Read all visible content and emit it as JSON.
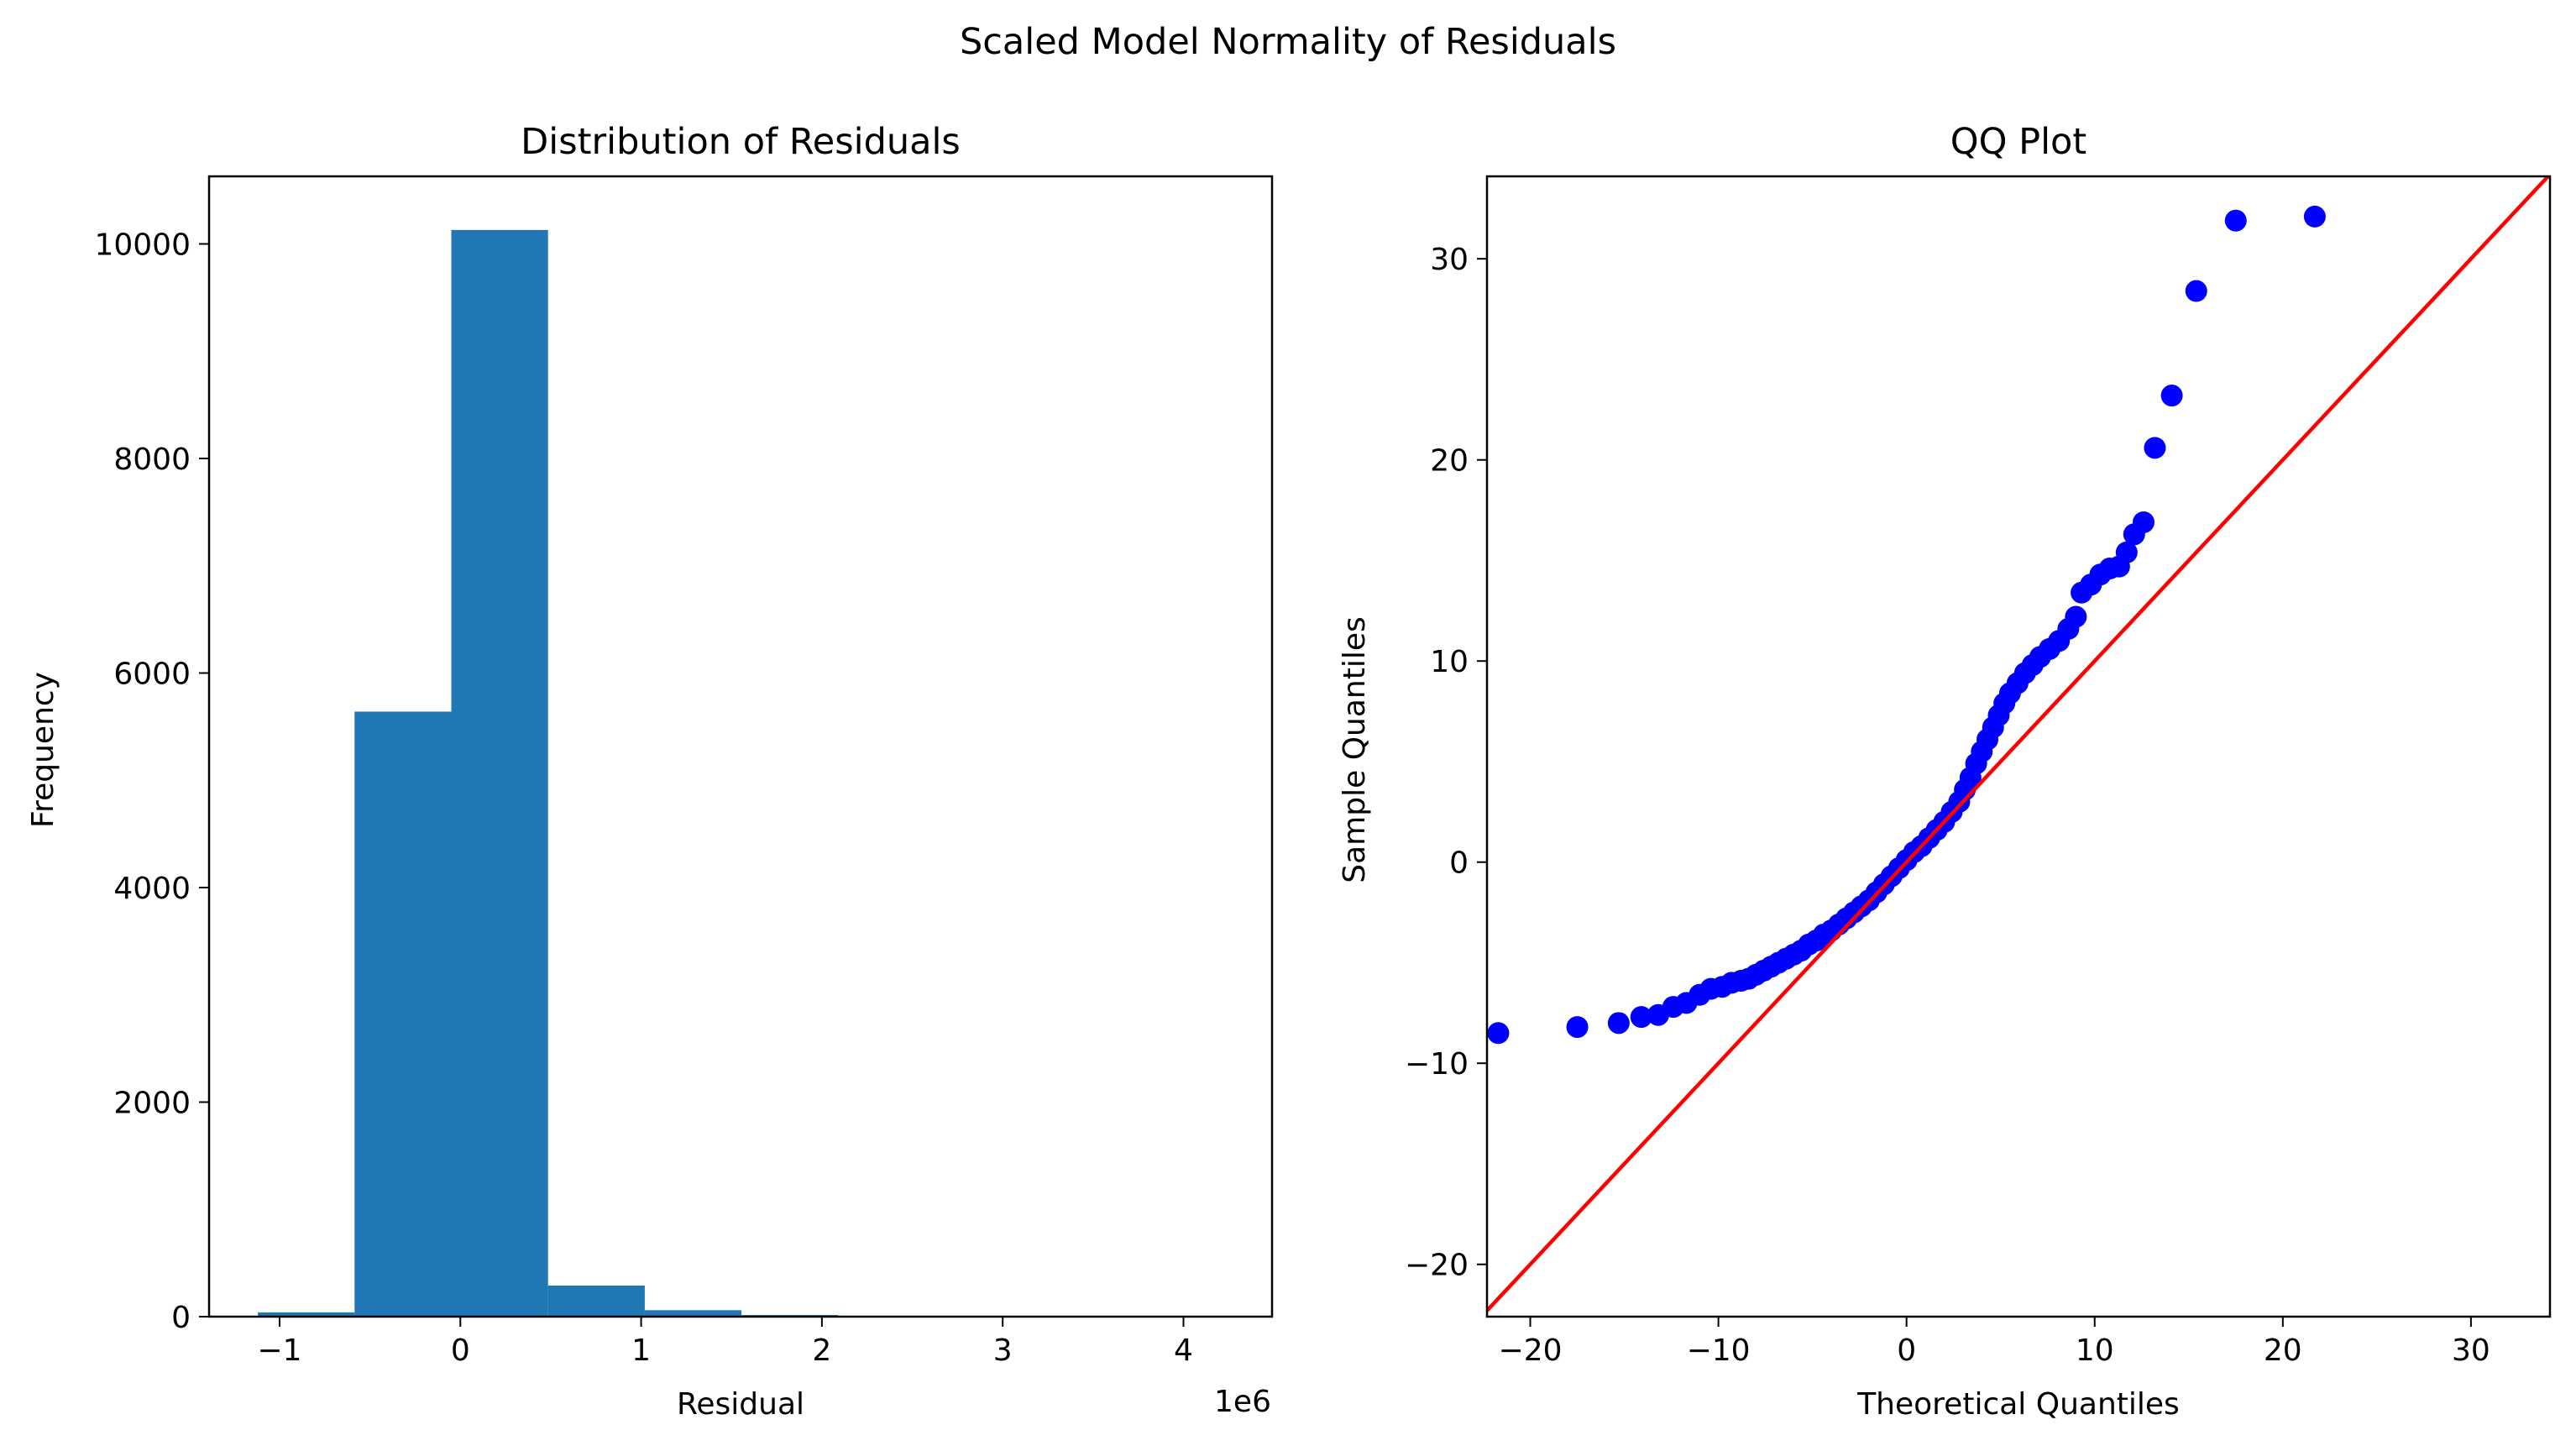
{
  "figure": {
    "suptitle": "Scaled Model Normality of Residuals"
  },
  "colors": {
    "hist_bar": "#1f77b4",
    "qq_points": "#0000ff",
    "qq_line": "#ff0000",
    "axes": "#000000",
    "background": "#ffffff"
  },
  "chart_data": [
    {
      "type": "bar",
      "subtype": "histogram",
      "title": "Distribution of Residuals",
      "xlabel": "Residual",
      "ylabel": "Frequency",
      "x_offset_label": "1e6",
      "xlim": [
        -1.39,
        4.49
      ],
      "ylim": [
        0,
        10630
      ],
      "xticks": [
        -1,
        0,
        1,
        2,
        3,
        4
      ],
      "xtick_labels": [
        "−1",
        "0",
        "1",
        "2",
        "3",
        "4"
      ],
      "yticks": [
        0,
        2000,
        4000,
        6000,
        8000,
        10000
      ],
      "ytick_labels": [
        "0",
        "2000",
        "4000",
        "6000",
        "8000",
        "10000"
      ],
      "bin_edges": [
        -1.12,
        -0.585,
        -0.05,
        0.485,
        1.02,
        1.555,
        2.09,
        2.625,
        3.16,
        3.695,
        4.23
      ],
      "values": [
        40,
        5640,
        10130,
        290,
        60,
        15,
        6,
        3,
        2,
        1
      ],
      "grid": false
    },
    {
      "type": "scatter",
      "subtype": "qq",
      "title": "QQ Plot",
      "xlabel": "Theoretical Quantiles",
      "ylabel": "Sample Quantiles",
      "xlim": [
        -22.3,
        34.2
      ],
      "ylim": [
        -22.6,
        34.1
      ],
      "xticks": [
        -20,
        -10,
        0,
        10,
        20,
        30
      ],
      "xtick_labels": [
        "−20",
        "−10",
        "0",
        "10",
        "20",
        "30"
      ],
      "yticks": [
        -20,
        -10,
        0,
        10,
        20,
        30
      ],
      "ytick_labels": [
        "−20",
        "−10",
        "0",
        "10",
        "20",
        "30"
      ],
      "reference_line": {
        "slope": 1,
        "intercept": 0
      },
      "points": [
        [
          -21.7,
          -8.5
        ],
        [
          -17.5,
          -8.2
        ],
        [
          -15.3,
          -8.0
        ],
        [
          -14.1,
          -7.7
        ],
        [
          -13.2,
          -7.6
        ],
        [
          -12.4,
          -7.2
        ],
        [
          -11.7,
          -7.0
        ],
        [
          -11.0,
          -6.6
        ],
        [
          -10.4,
          -6.3
        ],
        [
          -9.8,
          -6.2
        ],
        [
          -9.3,
          -6.0
        ],
        [
          -8.8,
          -5.9
        ],
        [
          -8.4,
          -5.8
        ],
        [
          -8.0,
          -5.6
        ],
        [
          -7.6,
          -5.4
        ],
        [
          -7.2,
          -5.2
        ],
        [
          -6.8,
          -5.0
        ],
        [
          -6.4,
          -4.8
        ],
        [
          -6.0,
          -4.6
        ],
        [
          -5.6,
          -4.4
        ],
        [
          -5.2,
          -4.1
        ],
        [
          -4.8,
          -3.9
        ],
        [
          -4.4,
          -3.6
        ],
        [
          -4.0,
          -3.4
        ],
        [
          -3.6,
          -3.1
        ],
        [
          -3.2,
          -2.8
        ],
        [
          -2.8,
          -2.5
        ],
        [
          -2.4,
          -2.2
        ],
        [
          -2.0,
          -1.9
        ],
        [
          -1.6,
          -1.5
        ],
        [
          -1.2,
          -1.1
        ],
        [
          -0.8,
          -0.7
        ],
        [
          -0.4,
          -0.3
        ],
        [
          0.0,
          0.1
        ],
        [
          0.4,
          0.5
        ],
        [
          0.8,
          0.8
        ],
        [
          1.2,
          1.2
        ],
        [
          1.6,
          1.6
        ],
        [
          2.0,
          2.0
        ],
        [
          2.4,
          2.5
        ],
        [
          2.8,
          3.0
        ],
        [
          3.1,
          3.6
        ],
        [
          3.4,
          4.2
        ],
        [
          3.7,
          4.9
        ],
        [
          4.0,
          5.5
        ],
        [
          4.3,
          6.1
        ],
        [
          4.6,
          6.7
        ],
        [
          4.9,
          7.3
        ],
        [
          5.2,
          7.9
        ],
        [
          5.5,
          8.4
        ],
        [
          5.9,
          8.9
        ],
        [
          6.3,
          9.4
        ],
        [
          6.7,
          9.8
        ],
        [
          7.1,
          10.2
        ],
        [
          7.6,
          10.6
        ],
        [
          8.1,
          11.0
        ],
        [
          8.6,
          11.6
        ],
        [
          9.0,
          12.2
        ],
        [
          9.3,
          13.4
        ],
        [
          9.8,
          13.8
        ],
        [
          10.3,
          14.3
        ],
        [
          10.8,
          14.6
        ],
        [
          11.3,
          14.7
        ],
        [
          11.7,
          15.4
        ],
        [
          12.1,
          16.3
        ],
        [
          12.6,
          16.9
        ],
        [
          13.2,
          20.6
        ],
        [
          14.1,
          23.2
        ],
        [
          15.4,
          28.4
        ],
        [
          17.5,
          31.9
        ],
        [
          21.7,
          32.1
        ]
      ],
      "grid": false
    }
  ]
}
